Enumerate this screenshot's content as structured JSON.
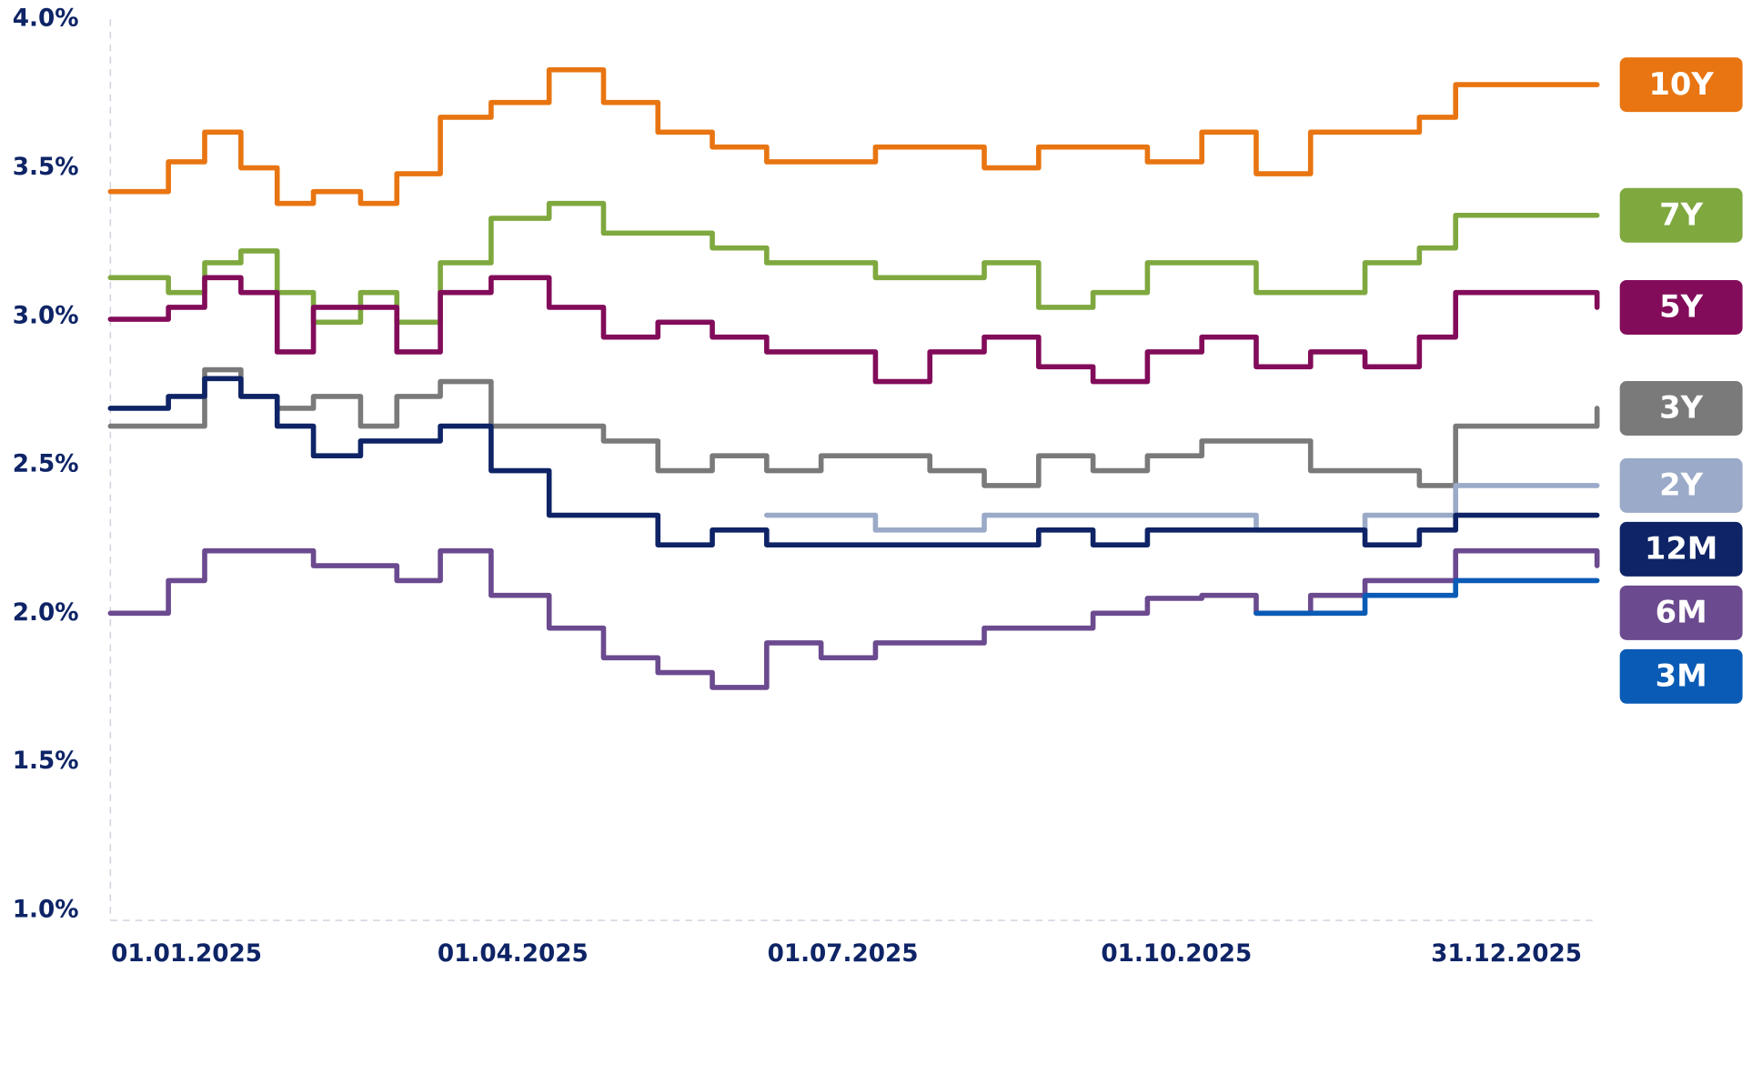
{
  "chart_data": {
    "type": "step-line",
    "x": [
      "11.12.2024",
      "27.12.2024",
      "06.01.2025",
      "16.01.2025",
      "26.01.2025",
      "05.02.2025",
      "18.02.2025",
      "28.02.2025",
      "12.03.2025",
      "26.03.2025",
      "11.04.2025",
      "26.04.2025",
      "11.05.2025",
      "26.05.2025",
      "10.06.2025",
      "25.06.2025",
      "10.07.2025",
      "25.07.2025",
      "09.08.2025",
      "24.08.2025",
      "08.09.2025",
      "23.09.2025",
      "08.10.2025",
      "23.10.2025",
      "07.11.2025",
      "22.11.2025",
      "07.12.2025",
      "17.12.2025",
      "25.01.2026"
    ],
    "xlim": [
      "11.12.2024",
      "25.01.2026"
    ],
    "xticks": [
      "01.01.2025",
      "01.04.2025",
      "01.07.2025",
      "01.10.2025",
      "31.12.2025"
    ],
    "ylim": [
      1.0,
      4.0
    ],
    "yticks": [
      {
        "value": 1.0,
        "label": "1.0%"
      },
      {
        "value": 1.5,
        "label": "1.5%"
      },
      {
        "value": 2.0,
        "label": "2.0%"
      },
      {
        "value": 2.5,
        "label": "2.5%"
      },
      {
        "value": 3.0,
        "label": "3.0%"
      },
      {
        "value": 3.5,
        "label": "3.5%"
      },
      {
        "value": 4.0,
        "label": "4.0%"
      }
    ],
    "series": [
      {
        "name": "10Y",
        "color": "#e87511",
        "values": [
          3.42,
          3.52,
          3.62,
          3.5,
          3.38,
          3.42,
          3.38,
          3.48,
          3.67,
          3.72,
          3.83,
          3.72,
          3.62,
          3.57,
          3.52,
          3.52,
          3.57,
          3.57,
          3.5,
          3.57,
          3.57,
          3.52,
          3.62,
          3.48,
          3.62,
          3.62,
          3.67,
          3.78,
          3.78
        ]
      },
      {
        "name": "7Y",
        "color": "#7fa83f",
        "values": [
          3.13,
          3.08,
          3.18,
          3.22,
          3.08,
          2.98,
          3.08,
          2.98,
          3.18,
          3.33,
          3.38,
          3.28,
          3.28,
          3.23,
          3.18,
          3.18,
          3.13,
          3.13,
          3.18,
          3.03,
          3.08,
          3.18,
          3.18,
          3.08,
          3.08,
          3.18,
          3.23,
          3.34,
          3.34
        ]
      },
      {
        "name": "5Y",
        "color": "#820c5a",
        "values": [
          2.99,
          3.03,
          3.13,
          3.08,
          2.88,
          3.03,
          3.03,
          2.88,
          3.08,
          3.13,
          3.03,
          2.93,
          2.98,
          2.93,
          2.88,
          2.88,
          2.78,
          2.88,
          2.93,
          2.83,
          2.78,
          2.88,
          2.93,
          2.83,
          2.88,
          2.83,
          2.93,
          3.08,
          3.03
        ]
      },
      {
        "name": "3Y",
        "color": "#7a7a7a",
        "values": [
          2.63,
          2.63,
          2.82,
          2.73,
          2.69,
          2.73,
          2.63,
          2.73,
          2.78,
          2.63,
          2.63,
          2.58,
          2.48,
          2.53,
          2.48,
          2.53,
          2.53,
          2.48,
          2.43,
          2.53,
          2.48,
          2.53,
          2.58,
          2.58,
          2.48,
          2.48,
          2.43,
          2.63,
          2.69
        ]
      },
      {
        "name": "2Y",
        "color": "#9aaac8",
        "values": [
          null,
          null,
          null,
          null,
          null,
          null,
          null,
          null,
          null,
          null,
          null,
          null,
          null,
          null,
          2.33,
          2.33,
          2.28,
          2.28,
          2.33,
          2.33,
          2.33,
          2.33,
          2.33,
          2.28,
          2.28,
          2.33,
          2.33,
          2.43,
          2.43
        ]
      },
      {
        "name": "12M",
        "color": "#0e2466",
        "values": [
          2.69,
          2.73,
          2.79,
          2.73,
          2.63,
          2.53,
          2.58,
          2.58,
          2.63,
          2.48,
          2.33,
          2.33,
          2.23,
          2.28,
          2.23,
          2.23,
          2.23,
          2.23,
          2.23,
          2.28,
          2.23,
          2.28,
          2.28,
          2.28,
          2.28,
          2.23,
          2.28,
          2.33,
          2.33
        ]
      },
      {
        "name": "6M",
        "color": "#6b4a8f",
        "values": [
          2.0,
          2.11,
          2.21,
          2.21,
          2.21,
          2.16,
          2.16,
          2.11,
          2.21,
          2.06,
          1.95,
          1.85,
          1.8,
          1.75,
          1.9,
          1.85,
          1.9,
          1.9,
          1.95,
          1.95,
          2.0,
          2.05,
          2.06,
          2.0,
          2.06,
          2.11,
          2.11,
          2.21,
          2.16
        ]
      },
      {
        "name": "3M",
        "color": "#0a5bb5",
        "values": [
          null,
          null,
          null,
          null,
          null,
          null,
          null,
          null,
          null,
          null,
          null,
          null,
          null,
          null,
          null,
          null,
          null,
          null,
          null,
          null,
          null,
          null,
          null,
          2.0,
          2.0,
          2.06,
          2.06,
          2.11,
          2.11
        ]
      }
    ]
  }
}
